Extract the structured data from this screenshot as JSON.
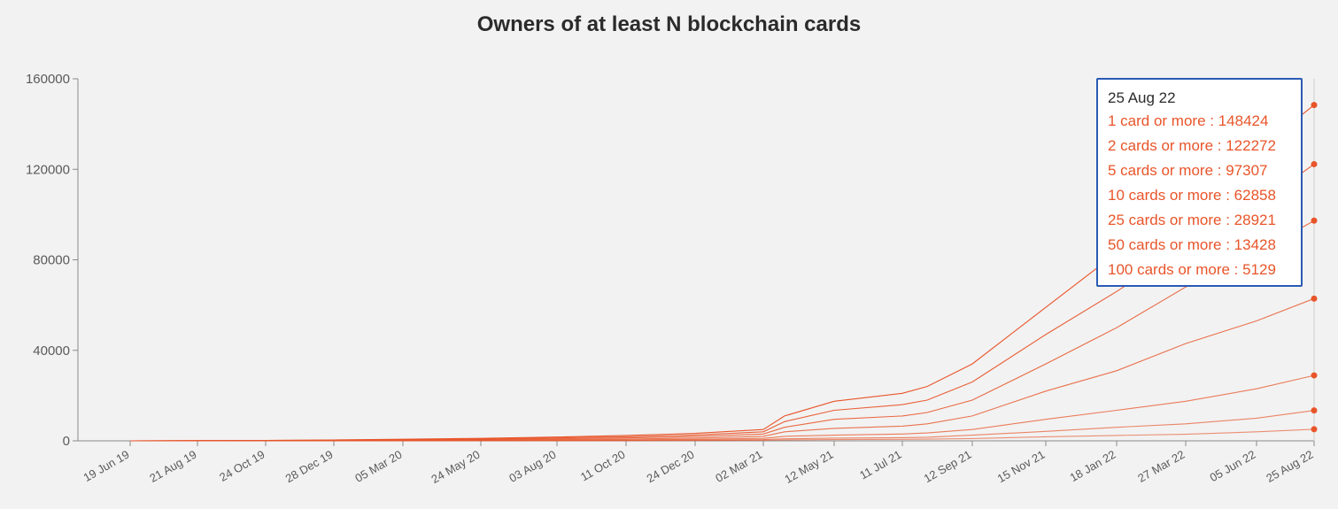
{
  "chart_data": {
    "type": "line",
    "title": "Owners of at least N blockchain cards",
    "xlabel": "",
    "ylabel": "",
    "ylim": [
      0,
      160000
    ],
    "yticks": [
      0,
      40000,
      80000,
      120000,
      160000
    ],
    "ytick_labels": [
      "0",
      "40000",
      "80000",
      "120000",
      "160000"
    ],
    "x_ticks": [
      "19 Jun 19",
      "21 Aug 19",
      "24 Oct 19",
      "28 Dec 19",
      "05 Mar 20",
      "24 May 20",
      "03 Aug 20",
      "11 Oct 20",
      "24 Dec 20",
      "02 Mar 21",
      "12 May 21",
      "11 Jul 21",
      "12 Sep 21",
      "15 Nov 21",
      "18 Jan 22",
      "27 Mar 22",
      "05 Jun 22",
      "25 Aug 22"
    ],
    "line_color": "#e8552a",
    "x": [
      "19 Jun 19",
      "21 Aug 19",
      "24 Oct 19",
      "28 Dec 19",
      "05 Mar 20",
      "24 May 20",
      "03 Aug 20",
      "11 Oct 20",
      "24 Dec 20",
      "02 Mar 21",
      "20 Mar 21",
      "12 May 21",
      "11 Jul 21",
      "20 Aug 21",
      "12 Sep 21",
      "15 Nov 21",
      "18 Jan 22",
      "27 Mar 22",
      "05 Jun 22",
      "25 Aug 22"
    ],
    "series": [
      {
        "name": "1 card or more",
        "values": [
          0,
          100,
          200,
          400,
          700,
          1100,
          1700,
          2400,
          3300,
          5000,
          11000,
          17500,
          21000,
          24000,
          34000,
          59000,
          83000,
          108000,
          128000,
          148424
        ]
      },
      {
        "name": "2 cards or more",
        "values": [
          0,
          70,
          150,
          300,
          500,
          800,
          1300,
          1800,
          2600,
          4000,
          8500,
          13500,
          16000,
          18000,
          26000,
          47000,
          66000,
          86000,
          104000,
          122272
        ]
      },
      {
        "name": "5 cards or more",
        "values": [
          0,
          50,
          100,
          200,
          350,
          550,
          900,
          1300,
          1900,
          3000,
          6000,
          9500,
          11000,
          12500,
          18000,
          34000,
          50000,
          68000,
          83000,
          97307
        ]
      },
      {
        "name": "10 cards or more",
        "values": [
          0,
          30,
          60,
          120,
          220,
          350,
          550,
          800,
          1200,
          2000,
          4000,
          5500,
          6500,
          7500,
          11000,
          22000,
          31000,
          43000,
          53000,
          62858
        ]
      },
      {
        "name": "25 cards or more",
        "values": [
          0,
          15,
          30,
          60,
          110,
          180,
          280,
          420,
          650,
          1100,
          2000,
          2500,
          3000,
          3500,
          5000,
          9500,
          13500,
          17500,
          23000,
          28921
        ]
      },
      {
        "name": "50 cards or more",
        "values": [
          0,
          5,
          15,
          30,
          55,
          90,
          140,
          210,
          320,
          550,
          900,
          1200,
          1400,
          1600,
          2500,
          4200,
          6000,
          7500,
          10000,
          13428
        ]
      },
      {
        "name": "100 cards or more",
        "values": [
          0,
          2,
          5,
          10,
          20,
          35,
          55,
          85,
          130,
          220,
          400,
          550,
          650,
          750,
          1000,
          1800,
          2400,
          2900,
          4000,
          5129
        ]
      }
    ]
  },
  "tooltip": {
    "date": "25 Aug 22",
    "rows": [
      "1 card or more : 148424",
      "2 cards or more : 122272",
      "5 cards or more : 97307",
      "10 cards or more : 62858",
      "25 cards or more : 28921",
      "50 cards or more : 13428",
      "100 cards or more : 5129"
    ]
  }
}
